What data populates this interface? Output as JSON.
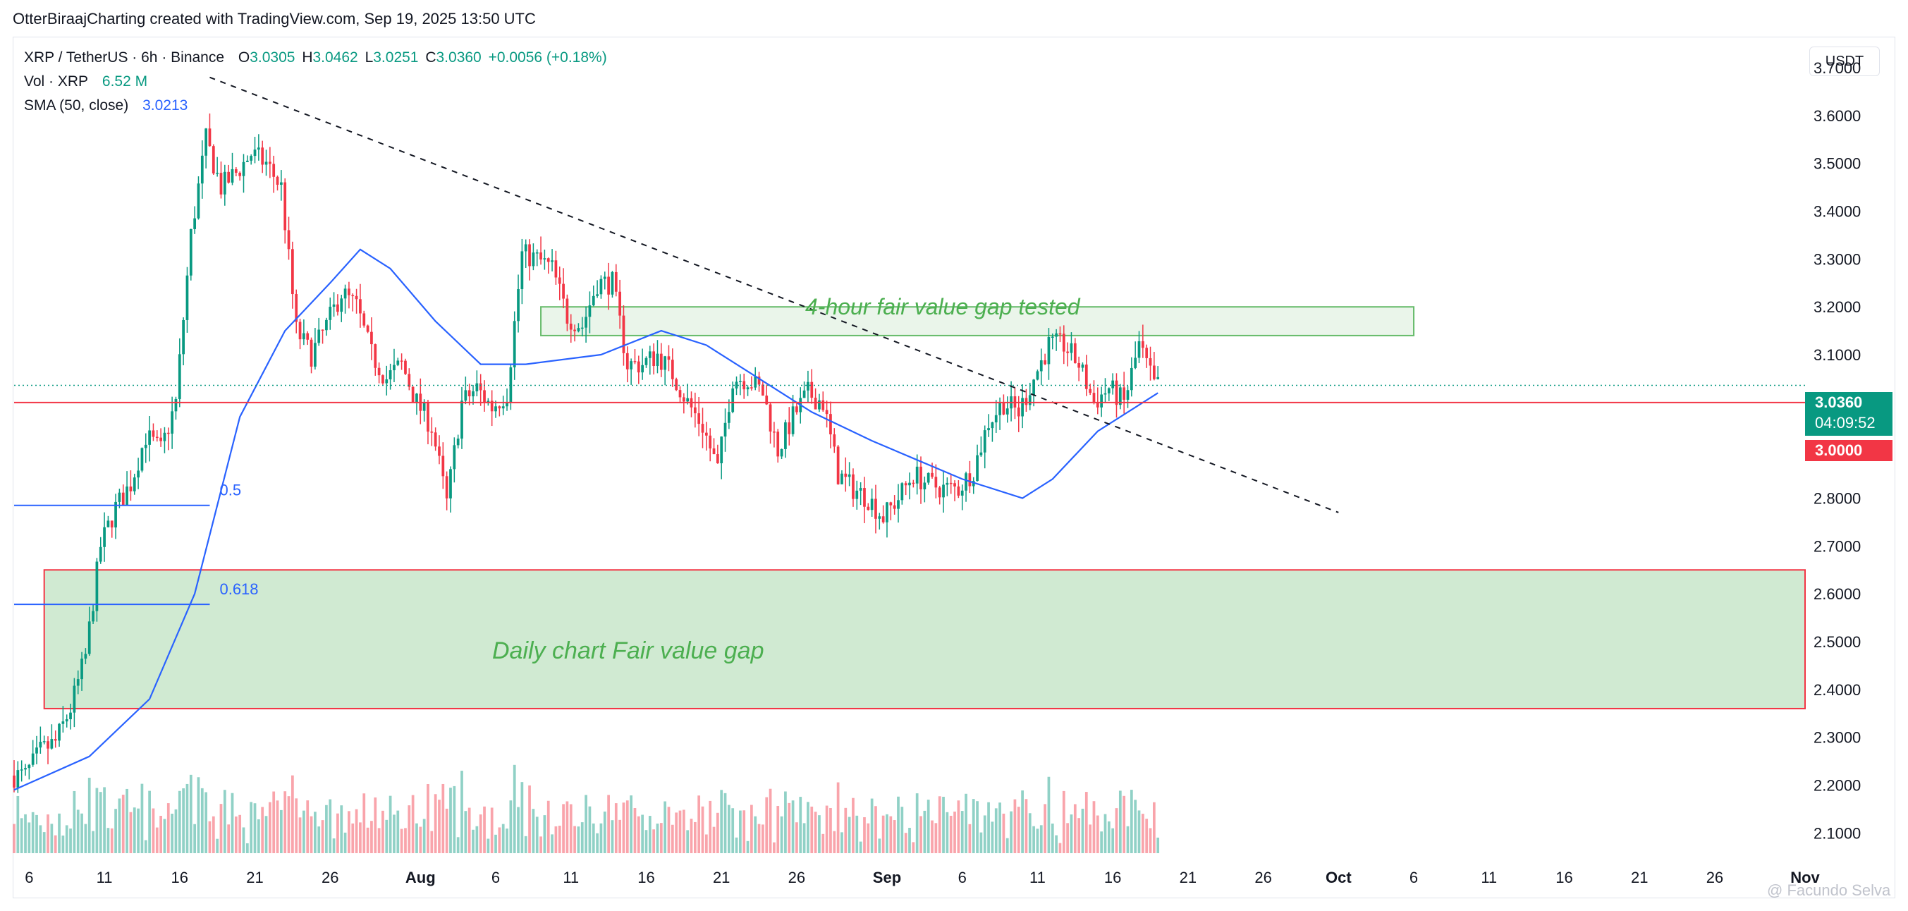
{
  "header": {
    "credit": "OtterBiraajCharting created with TradingView.com, Sep 19, 2025 13:50 UTC"
  },
  "legend": {
    "symbol": "XRP / TetherUS · 6h · Binance",
    "open_label": "O",
    "open": "3.0305",
    "high_label": "H",
    "high": "3.0462",
    "low_label": "L",
    "low": "3.0251",
    "close_label": "C",
    "close": "3.0360",
    "change": "+0.0056 (+0.18%)",
    "vol_label": "Vol · XRP",
    "vol_value": "6.52 M",
    "sma_label": "SMA (50, close)",
    "sma_value": "3.0213"
  },
  "axis": {
    "currency": "USDT",
    "current_price": "3.0360",
    "countdown": "04:09:52",
    "level_price": "3.0000"
  },
  "annotations": {
    "fvg_4h_label": "4-hour fair value gap tested",
    "fvg_daily_label": "Daily chart Fair value gap",
    "fib_05": "0.5",
    "fib_0618": "0.618"
  },
  "watermark": "@ Facundo Selva",
  "colors": {
    "up": "#089981",
    "down": "#f23645",
    "sma": "#2962ff",
    "fvg_fill": "#d0ead2",
    "fvg_4h_fill": "#eaf5ea",
    "fvg_border_4h": "#66bb6a",
    "fvg_border_daily": "#f23645",
    "annotation_text": "#4caf50"
  },
  "chart_data": {
    "type": "candlestick",
    "title": "XRP / TetherUS · 6h · Binance",
    "y_axis": {
      "range": [
        2.04,
        3.765
      ],
      "ticks": [
        2.1,
        2.2,
        2.3,
        2.4,
        2.5,
        2.6,
        2.7,
        2.8,
        2.9,
        3.0,
        3.1,
        3.2,
        3.3,
        3.4,
        3.5,
        3.6,
        3.7
      ]
    },
    "x_axis": {
      "range": [
        "2025-07-05",
        "2025-11-01"
      ],
      "ticks": [
        {
          "date": "2025-07-06",
          "label": "6"
        },
        {
          "date": "2025-07-11",
          "label": "11"
        },
        {
          "date": "2025-07-16",
          "label": "16"
        },
        {
          "date": "2025-07-21",
          "label": "21"
        },
        {
          "date": "2025-07-26",
          "label": "26"
        },
        {
          "date": "2025-08-01",
          "label": "Aug"
        },
        {
          "date": "2025-08-06",
          "label": "6"
        },
        {
          "date": "2025-08-11",
          "label": "11"
        },
        {
          "date": "2025-08-16",
          "label": "16"
        },
        {
          "date": "2025-08-21",
          "label": "21"
        },
        {
          "date": "2025-08-26",
          "label": "26"
        },
        {
          "date": "2025-09-01",
          "label": "Sep"
        },
        {
          "date": "2025-09-06",
          "label": "6"
        },
        {
          "date": "2025-09-11",
          "label": "11"
        },
        {
          "date": "2025-09-16",
          "label": "16"
        },
        {
          "date": "2025-09-21",
          "label": "21"
        },
        {
          "date": "2025-09-26",
          "label": "26"
        },
        {
          "date": "2025-10-01",
          "label": "Oct"
        },
        {
          "date": "2025-10-06",
          "label": "6"
        },
        {
          "date": "2025-10-11",
          "label": "11"
        },
        {
          "date": "2025-10-16",
          "label": "16"
        },
        {
          "date": "2025-10-21",
          "label": "21"
        },
        {
          "date": "2025-10-26",
          "label": "26"
        },
        {
          "date": "2025-11-01",
          "label": "Nov"
        }
      ]
    },
    "price_path": [
      [
        "2025-07-05",
        2.22
      ],
      [
        "2025-07-06",
        2.22
      ],
      [
        "2025-07-07",
        2.27
      ],
      [
        "2025-07-08",
        2.29
      ],
      [
        "2025-07-09",
        2.36
      ],
      [
        "2025-07-10",
        2.47
      ],
      [
        "2025-07-11",
        2.7
      ],
      [
        "2025-07-12",
        2.78
      ],
      [
        "2025-07-13",
        2.83
      ],
      [
        "2025-07-14",
        2.93
      ],
      [
        "2025-07-15",
        2.9
      ],
      [
        "2025-07-16",
        3.0
      ],
      [
        "2025-07-17",
        3.35
      ],
      [
        "2025-07-18",
        3.55
      ],
      [
        "2025-07-19",
        3.45
      ],
      [
        "2025-07-20",
        3.48
      ],
      [
        "2025-07-21",
        3.52
      ],
      [
        "2025-07-22",
        3.5
      ],
      [
        "2025-07-23",
        3.45
      ],
      [
        "2025-07-24",
        3.15
      ],
      [
        "2025-07-25",
        3.1
      ],
      [
        "2025-07-26",
        3.16
      ],
      [
        "2025-07-27",
        3.23
      ],
      [
        "2025-07-28",
        3.2
      ],
      [
        "2025-07-29",
        3.1
      ],
      [
        "2025-07-30",
        3.05
      ],
      [
        "2025-07-31",
        3.08
      ],
      [
        "2025-08-01",
        3.0
      ],
      [
        "2025-08-02",
        2.95
      ],
      [
        "2025-08-03",
        2.79
      ],
      [
        "2025-08-04",
        3.0
      ],
      [
        "2025-08-05",
        3.03
      ],
      [
        "2025-08-06",
        2.99
      ],
      [
        "2025-08-07",
        3.02
      ],
      [
        "2025-08-08",
        3.31
      ],
      [
        "2025-08-09",
        3.3
      ],
      [
        "2025-08-10",
        3.28
      ],
      [
        "2025-08-11",
        3.18
      ],
      [
        "2025-08-12",
        3.16
      ],
      [
        "2025-08-13",
        3.25
      ],
      [
        "2025-08-14",
        3.25
      ],
      [
        "2025-08-15",
        3.08
      ],
      [
        "2025-08-16",
        3.08
      ],
      [
        "2025-08-17",
        3.1
      ],
      [
        "2025-08-18",
        3.06
      ],
      [
        "2025-08-19",
        3.0
      ],
      [
        "2025-08-20",
        2.95
      ],
      [
        "2025-08-21",
        2.86
      ],
      [
        "2025-08-22",
        3.05
      ],
      [
        "2025-08-23",
        3.05
      ],
      [
        "2025-08-24",
        3.02
      ],
      [
        "2025-08-25",
        2.9
      ],
      [
        "2025-08-26",
        2.97
      ],
      [
        "2025-08-27",
        3.02
      ],
      [
        "2025-08-28",
        3.0
      ],
      [
        "2025-08-29",
        2.85
      ],
      [
        "2025-08-30",
        2.82
      ],
      [
        "2025-08-31",
        2.8
      ],
      [
        "2025-09-01",
        2.76
      ],
      [
        "2025-09-02",
        2.8
      ],
      [
        "2025-09-03",
        2.85
      ],
      [
        "2025-09-04",
        2.83
      ],
      [
        "2025-09-05",
        2.82
      ],
      [
        "2025-09-06",
        2.82
      ],
      [
        "2025-09-07",
        2.86
      ],
      [
        "2025-09-08",
        2.96
      ],
      [
        "2025-09-09",
        3.0
      ],
      [
        "2025-09-10",
        2.98
      ],
      [
        "2025-09-11",
        3.05
      ],
      [
        "2025-09-12",
        3.12
      ],
      [
        "2025-09-13",
        3.12
      ],
      [
        "2025-09-14",
        3.08
      ],
      [
        "2025-09-15",
        3.0
      ],
      [
        "2025-09-16",
        3.03
      ],
      [
        "2025-09-17",
        3.0
      ],
      [
        "2025-09-18",
        3.12
      ],
      [
        "2025-09-19",
        3.036
      ]
    ],
    "sma_path": [
      [
        "2025-07-05",
        2.19
      ],
      [
        "2025-07-10",
        2.26
      ],
      [
        "2025-07-14",
        2.38
      ],
      [
        "2025-07-17",
        2.6
      ],
      [
        "2025-07-20",
        2.97
      ],
      [
        "2025-07-23",
        3.15
      ],
      [
        "2025-07-26",
        3.25
      ],
      [
        "2025-07-28",
        3.32
      ],
      [
        "2025-07-30",
        3.28
      ],
      [
        "2025-08-02",
        3.17
      ],
      [
        "2025-08-05",
        3.08
      ],
      [
        "2025-08-08",
        3.08
      ],
      [
        "2025-08-13",
        3.1
      ],
      [
        "2025-08-17",
        3.15
      ],
      [
        "2025-08-20",
        3.12
      ],
      [
        "2025-08-24",
        3.04
      ],
      [
        "2025-08-27",
        2.98
      ],
      [
        "2025-08-31",
        2.92
      ],
      [
        "2025-09-03",
        2.88
      ],
      [
        "2025-09-06",
        2.84
      ],
      [
        "2025-09-10",
        2.8
      ],
      [
        "2025-09-12",
        2.84
      ],
      [
        "2025-09-15",
        2.94
      ],
      [
        "2025-09-19",
        3.02
      ]
    ],
    "volume_range": [
      0,
      18
    ],
    "current_price": 3.036,
    "horizontal_level": 3.0,
    "trendline": {
      "from": [
        "2025-07-18",
        3.68
      ],
      "to": [
        "2025-10-01",
        2.77
      ]
    },
    "fvg_4h": {
      "from": "2025-08-09",
      "to": "2025-10-06",
      "low": 3.14,
      "high": 3.2
    },
    "fvg_daily": {
      "from": "2025-07-07",
      "to": "2025-11-01",
      "low": 2.36,
      "high": 2.65
    },
    "fib_05": {
      "from": "2025-07-05",
      "to": "2025-07-18",
      "price": 2.785
    },
    "fib_0618": {
      "from": "2025-07-05",
      "to": "2025-07-18",
      "price": 2.578
    }
  }
}
